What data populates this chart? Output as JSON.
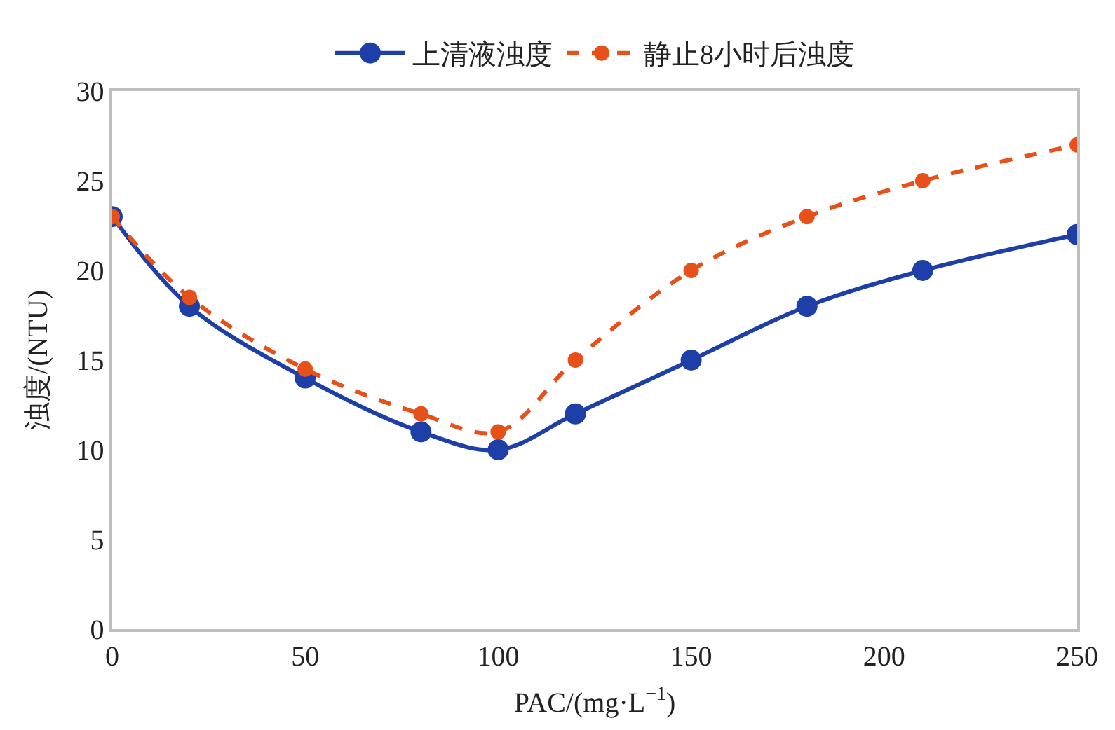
{
  "chart_data": {
    "type": "line",
    "xlabel": "PAC/(mg·L$^{−1}$)",
    "ylabel": "浊度/(NTU)",
    "x": [
      0,
      20,
      50,
      80,
      100,
      120,
      150,
      180,
      210,
      250
    ],
    "series": [
      {
        "name": "上清液浊度",
        "color": "#1f3fa8",
        "values": [
          23,
          18,
          14,
          11,
          10,
          12,
          15,
          18,
          20,
          22
        ],
        "line_style": "solid"
      },
      {
        "name": "静止8小时后浊度",
        "color": "#e8501a",
        "values": [
          23,
          18.5,
          14.5,
          12,
          11,
          15,
          20,
          23,
          25,
          27
        ],
        "line_style": "dashed"
      }
    ],
    "xlim": [
      0,
      250
    ],
    "xticks": [
      0,
      50,
      100,
      150,
      200,
      250
    ],
    "ylim": [
      0,
      30
    ],
    "yticks": [
      0,
      5,
      10,
      15,
      20,
      25,
      30
    ],
    "grid": false,
    "legend": "top",
    "marker": "circle"
  }
}
